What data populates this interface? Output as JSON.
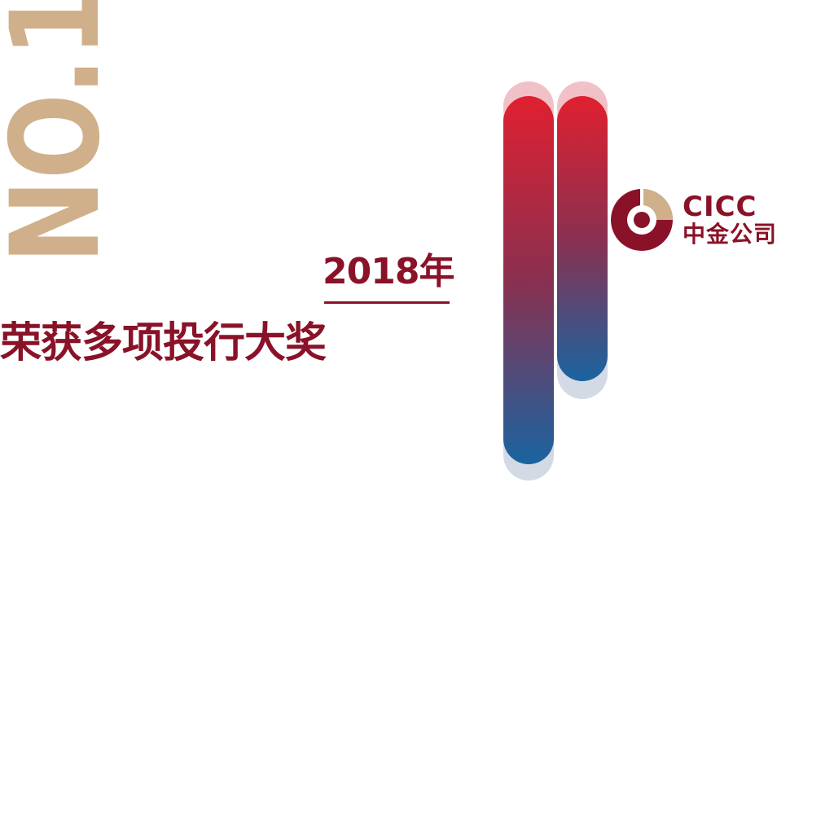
{
  "badge": {
    "text": "NO.1"
  },
  "headline": {
    "year": "2018年",
    "title": "荣获多项投行大奖"
  },
  "logo": {
    "name_en": "CICC",
    "name_cn": "中金公司"
  },
  "colors": {
    "primary": "#8a1228",
    "gold": "#d0b08a",
    "gradient_top": "#e02030",
    "gradient_bottom": "#1a64a0"
  }
}
